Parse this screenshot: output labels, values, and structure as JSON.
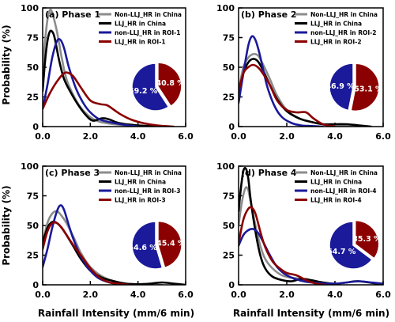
{
  "figure": {
    "ylabel": "Probability (%)",
    "xlabel": "Rainfall Intensity (mm/6 min)"
  },
  "colors": {
    "non_llj_china": "#8c8c8c",
    "llj_china": "#000000",
    "non_llj_roi": "#1a1a9a",
    "llj_roi": "#8b0000"
  },
  "chart_data": [
    {
      "type": "line",
      "title": "(a) Phase 1",
      "xlim": [
        0,
        6
      ],
      "ylim": [
        0,
        100
      ],
      "xticks": [
        "0.0",
        "2.0",
        "4.0",
        "6.0"
      ],
      "yticks": [
        "0",
        "25",
        "50",
        "75",
        "100"
      ],
      "legend_position": "top-right",
      "series": [
        {
          "name": "Non-LLJ_HR in China",
          "color_key": "non_llj_china",
          "x": [
            0,
            0.1,
            0.2,
            0.3,
            0.4,
            0.6,
            0.8,
            1.0,
            1.3,
            1.6,
            2.0,
            2.4,
            3.0,
            3.5,
            4.0,
            5.0
          ],
          "y": [
            50,
            72,
            90,
            98,
            96,
            80,
            58,
            40,
            26,
            16,
            8,
            4,
            2,
            1,
            0.5,
            0
          ]
        },
        {
          "name": "LLJ_HR in China",
          "color_key": "llj_china",
          "x": [
            0,
            0.1,
            0.2,
            0.3,
            0.4,
            0.5,
            0.7,
            0.9,
            1.2,
            1.5,
            1.8,
            2.1,
            2.5,
            2.8,
            3.2,
            4.0,
            5.0
          ],
          "y": [
            30,
            55,
            72,
            80,
            80,
            75,
            55,
            40,
            28,
            18,
            10,
            5,
            7,
            6,
            3,
            1,
            0
          ]
        },
        {
          "name": "non-LLJ_HR in ROI-1",
          "color_key": "non_llj_roi",
          "x": [
            0,
            0.2,
            0.4,
            0.6,
            0.75,
            0.9,
            1.1,
            1.4,
            1.7,
            2.0,
            2.4,
            3.0,
            3.6,
            4.0
          ],
          "y": [
            15,
            35,
            58,
            72,
            73,
            66,
            50,
            32,
            20,
            12,
            6,
            3,
            1,
            0
          ]
        },
        {
          "name": "LLJ_HR in ROI-1",
          "color_key": "llj_roi",
          "x": [
            0,
            0.3,
            0.6,
            0.9,
            1.1,
            1.3,
            1.6,
            2.0,
            2.4,
            2.7,
            3.0,
            3.3,
            3.7,
            4.2,
            4.8,
            5.5
          ],
          "y": [
            15,
            28,
            38,
            45,
            45,
            42,
            33,
            22,
            19,
            18,
            14,
            10,
            6,
            3,
            1,
            0
          ]
        }
      ],
      "pie": {
        "slices": [
          {
            "label": "40.8 %",
            "value": 40.8,
            "color_key": "llj_roi"
          },
          {
            "label": "59.2 %",
            "value": 59.2,
            "color_key": "non_llj_roi"
          }
        ]
      }
    },
    {
      "type": "line",
      "title": "(b) Phase 2",
      "xlim": [
        0,
        6
      ],
      "ylim": [
        0,
        100
      ],
      "xticks": [
        "0.0",
        "2.0",
        "4.0",
        "6.0"
      ],
      "yticks": [
        "0",
        "25",
        "50",
        "75",
        "100"
      ],
      "legend_position": "top-right",
      "series": [
        {
          "name": "Non-LLJ_HR in China",
          "color_key": "non_llj_china",
          "x": [
            0,
            0.2,
            0.4,
            0.6,
            0.8,
            1.0,
            1.3,
            1.6,
            2.0,
            2.5,
            3.0,
            3.5,
            4.0,
            5.0
          ],
          "y": [
            30,
            50,
            58,
            61,
            60,
            53,
            40,
            26,
            14,
            7,
            4,
            2,
            1,
            0
          ]
        },
        {
          "name": "LLJ_HR in China",
          "color_key": "llj_china",
          "x": [
            0,
            0.2,
            0.4,
            0.6,
            0.8,
            1.0,
            1.3,
            1.6,
            2.0,
            2.5,
            3.0,
            3.5,
            4.0,
            4.5,
            5.0,
            5.5
          ],
          "y": [
            28,
            45,
            54,
            57,
            55,
            48,
            35,
            23,
            13,
            7,
            4,
            2,
            2,
            2,
            1,
            0
          ]
        },
        {
          "name": "non-LLJ_HR in ROI-2",
          "color_key": "non_llj_roi",
          "x": [
            0,
            0.2,
            0.4,
            0.55,
            0.7,
            0.85,
            1.0,
            1.2,
            1.5,
            1.8,
            2.2,
            2.6,
            3.0,
            3.5
          ],
          "y": [
            20,
            45,
            68,
            76,
            73,
            63,
            50,
            33,
            17,
            8,
            3,
            1,
            0.5,
            0
          ]
        },
        {
          "name": "LLJ_HR in ROI-2",
          "color_key": "llj_roi",
          "x": [
            0,
            0.2,
            0.4,
            0.6,
            0.8,
            1.0,
            1.3,
            1.6,
            2.0,
            2.4,
            2.8,
            3.1,
            3.5,
            4.0
          ],
          "y": [
            30,
            45,
            50,
            52,
            50,
            45,
            35,
            22,
            14,
            12,
            12,
            7,
            2,
            0
          ]
        }
      ],
      "pie": {
        "slices": [
          {
            "label": "53.1 %",
            "value": 53.1,
            "color_key": "llj_roi"
          },
          {
            "label": "46.9 %",
            "value": 46.9,
            "color_key": "non_llj_roi"
          }
        ]
      }
    },
    {
      "type": "line",
      "title": "(c) Phase 3",
      "xlim": [
        0,
        6
      ],
      "ylim": [
        0,
        100
      ],
      "xticks": [
        "0.0",
        "2.0",
        "4.0",
        "6.0"
      ],
      "yticks": [
        "0",
        "25",
        "50",
        "75",
        "100"
      ],
      "legend_position": "top-right",
      "series": [
        {
          "name": "Non-LLJ_HR in China",
          "color_key": "non_llj_china",
          "x": [
            0,
            0.2,
            0.4,
            0.6,
            0.8,
            1.0,
            1.3,
            1.6,
            2.0,
            2.5,
            3.0,
            3.5,
            4.0,
            5.0
          ],
          "y": [
            35,
            52,
            60,
            62,
            58,
            52,
            40,
            27,
            15,
            7,
            3,
            1,
            0.5,
            0
          ]
        },
        {
          "name": "LLJ_HR in China",
          "color_key": "llj_china",
          "x": [
            0,
            0.2,
            0.4,
            0.6,
            0.8,
            1.0,
            1.3,
            1.6,
            2.0,
            2.5,
            3.0,
            3.5,
            4.0,
            4.5,
            5.0,
            5.5,
            6.0
          ],
          "y": [
            35,
            48,
            53,
            52,
            48,
            42,
            32,
            22,
            12,
            6,
            3,
            1,
            0.5,
            1,
            2,
            1,
            0
          ]
        },
        {
          "name": "non-LLJ_HR in ROI-3",
          "color_key": "non_llj_roi",
          "x": [
            0,
            0.2,
            0.4,
            0.6,
            0.75,
            0.9,
            1.1,
            1.3,
            1.6,
            2.0,
            2.4,
            3.0,
            3.5
          ],
          "y": [
            15,
            30,
            48,
            62,
            67,
            63,
            50,
            38,
            24,
            12,
            5,
            1,
            0
          ]
        },
        {
          "name": "LLJ_HR in ROI-3",
          "color_key": "llj_roi",
          "x": [
            0,
            0.2,
            0.4,
            0.6,
            0.8,
            1.0,
            1.3,
            1.6,
            2.0,
            2.4,
            2.8,
            3.2,
            3.6
          ],
          "y": [
            30,
            45,
            52,
            52,
            48,
            42,
            33,
            25,
            14,
            6,
            2,
            1,
            0
          ]
        }
      ],
      "pie": {
        "slices": [
          {
            "label": "45.4 %",
            "value": 45.4,
            "color_key": "llj_roi"
          },
          {
            "label": "54.6 %",
            "value": 54.6,
            "color_key": "non_llj_roi"
          }
        ]
      }
    },
    {
      "type": "line",
      "title": "(d) Phase 4",
      "xlim": [
        0,
        6
      ],
      "ylim": [
        0,
        100
      ],
      "xticks": [
        "0.0",
        "2.0",
        "4.0",
        "6.0"
      ],
      "yticks": [
        "0",
        "25",
        "50",
        "75",
        "100"
      ],
      "legend_position": "top-right",
      "series": [
        {
          "name": "Non-LLJ_HR in China",
          "color_key": "non_llj_china",
          "x": [
            0,
            0.1,
            0.2,
            0.3,
            0.4,
            0.5,
            0.7,
            0.9,
            1.1,
            1.4,
            1.8,
            2.2,
            2.6,
            3.0,
            3.5,
            4.0
          ],
          "y": [
            50,
            65,
            76,
            82,
            80,
            70,
            50,
            33,
            22,
            14,
            8,
            6,
            5,
            3,
            1,
            0
          ]
        },
        {
          "name": "LLJ_HR in China",
          "color_key": "llj_china",
          "x": [
            0,
            0.1,
            0.2,
            0.3,
            0.4,
            0.5,
            0.7,
            0.9,
            1.1,
            1.4,
            1.8,
            2.2,
            2.6,
            3.0,
            3.5,
            4.0,
            4.5,
            5.0,
            6.0
          ],
          "y": [
            62,
            82,
            96,
            98,
            90,
            72,
            45,
            25,
            14,
            7,
            4,
            3,
            5,
            4,
            2,
            1,
            2,
            3,
            0
          ]
        },
        {
          "name": "non-LLJ_HR in ROI-4",
          "color_key": "non_llj_roi",
          "x": [
            0,
            0.2,
            0.4,
            0.6,
            0.8,
            1.0,
            1.3,
            1.6,
            2.0,
            2.5,
            3.0,
            4.0,
            4.5,
            5.0,
            5.5,
            6.0
          ],
          "y": [
            33,
            42,
            46,
            47,
            44,
            37,
            25,
            15,
            8,
            4,
            2,
            1,
            2,
            3,
            2,
            1
          ]
        },
        {
          "name": "LLJ_HR in ROI-4",
          "color_key": "llj_roi",
          "x": [
            0,
            0.2,
            0.4,
            0.55,
            0.7,
            0.9,
            1.1,
            1.4,
            1.7,
            2.0,
            2.4,
            2.8,
            3.2,
            3.6
          ],
          "y": [
            35,
            55,
            64,
            65,
            60,
            45,
            32,
            20,
            14,
            10,
            8,
            4,
            1,
            0
          ]
        }
      ],
      "pie": {
        "slices": [
          {
            "label": "35.3 %",
            "value": 35.3,
            "color_key": "llj_roi"
          },
          {
            "label": "64.7 %",
            "value": 64.7,
            "color_key": "non_llj_roi"
          }
        ]
      }
    }
  ]
}
